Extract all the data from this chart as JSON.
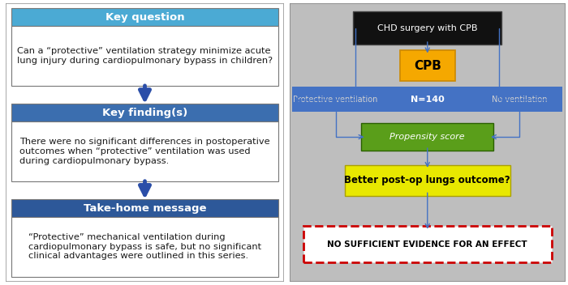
{
  "left_panel": {
    "key_question_header": "Key question",
    "key_question_body": "Can a “protective” ventilation strategy minimize acute\nlung injury during cardiopulmonary bypass in children?",
    "key_findings_header": "Key finding(s)",
    "key_findings_body": "There were no significant differences in postoperative\noutcomes when “protective” ventilation was used\nduring cardiopulmonary bypass.",
    "takehome_header": "Take-home message",
    "takehome_body": "“Protective” mechanical ventilation during\ncardiopulmonary bypass is safe, but no significant\nclinical advantages were outlined in this series.",
    "header_color_1": "#4BAAD4",
    "header_color_2": "#3B6EAF",
    "header_color_3": "#2D5899",
    "arrow_color": "#2B4EA8"
  },
  "right_panel": {
    "chd_box_text": "CHD surgery with CPB",
    "chd_box_color": "#111111",
    "cpb_box_text": "CPB",
    "cpb_box_color": "#F5A800",
    "bar_text_left": "Protective ventilation",
    "bar_text_center": "N=140",
    "bar_text_right": "No ventilation",
    "bar_color": "#4472C4",
    "propensity_text": "Propensity score",
    "propensity_color": "#5A9E1A",
    "outcome_text": "Better post-op lungs outcome?",
    "outcome_color": "#E8E800",
    "evidence_text": "NO SUFFICIENT EVIDENCE FOR AN EFFECT",
    "evidence_bg": "#FFFFFF",
    "evidence_border": "#CC0000",
    "arrow_color": "#4472C4",
    "background_color": "#BEBEBE"
  }
}
